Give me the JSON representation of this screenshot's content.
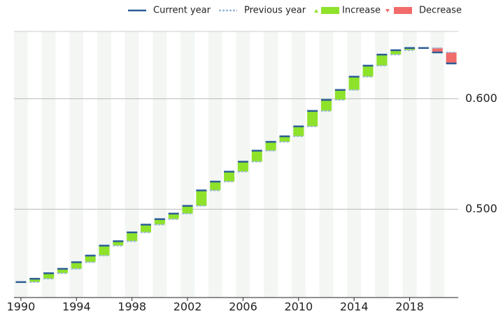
{
  "chart_data": {
    "type": "waterfall",
    "x": [
      1990,
      1991,
      1992,
      1993,
      1994,
      1995,
      1996,
      1997,
      1998,
      1999,
      2000,
      2001,
      2002,
      2003,
      2004,
      2005,
      2006,
      2007,
      2008,
      2009,
      2010,
      2011,
      2012,
      2013,
      2014,
      2015,
      2016,
      2017,
      2018,
      2019,
      2020,
      2021
    ],
    "values": [
      0.434,
      0.437,
      0.442,
      0.446,
      0.452,
      0.458,
      0.467,
      0.471,
      0.479,
      0.486,
      0.491,
      0.496,
      0.503,
      0.517,
      0.525,
      0.534,
      0.543,
      0.553,
      0.561,
      0.566,
      0.575,
      0.589,
      0.599,
      0.608,
      0.62,
      0.63,
      0.64,
      0.644,
      0.646,
      0.646,
      0.642,
      0.632
    ],
    "legend": [
      {
        "name": "Current year",
        "color": "#2b5d97"
      },
      {
        "name": "Previous year",
        "color": "#9cb8d8"
      },
      {
        "name": "Increase",
        "color": "#8ee22a"
      },
      {
        "name": "Decrease",
        "color": "#f26b6b"
      }
    ],
    "xlim": [
      1989.5,
      2021.5
    ],
    "xticks": [
      1990,
      1994,
      1998,
      2002,
      2006,
      2010,
      2014,
      2018
    ],
    "ylim": [
      0.42,
      0.661
    ],
    "yticks": [
      {
        "value": 0.5,
        "label": "0.500"
      },
      {
        "value": 0.6,
        "label": "0.600"
      }
    ],
    "grid": true
  }
}
